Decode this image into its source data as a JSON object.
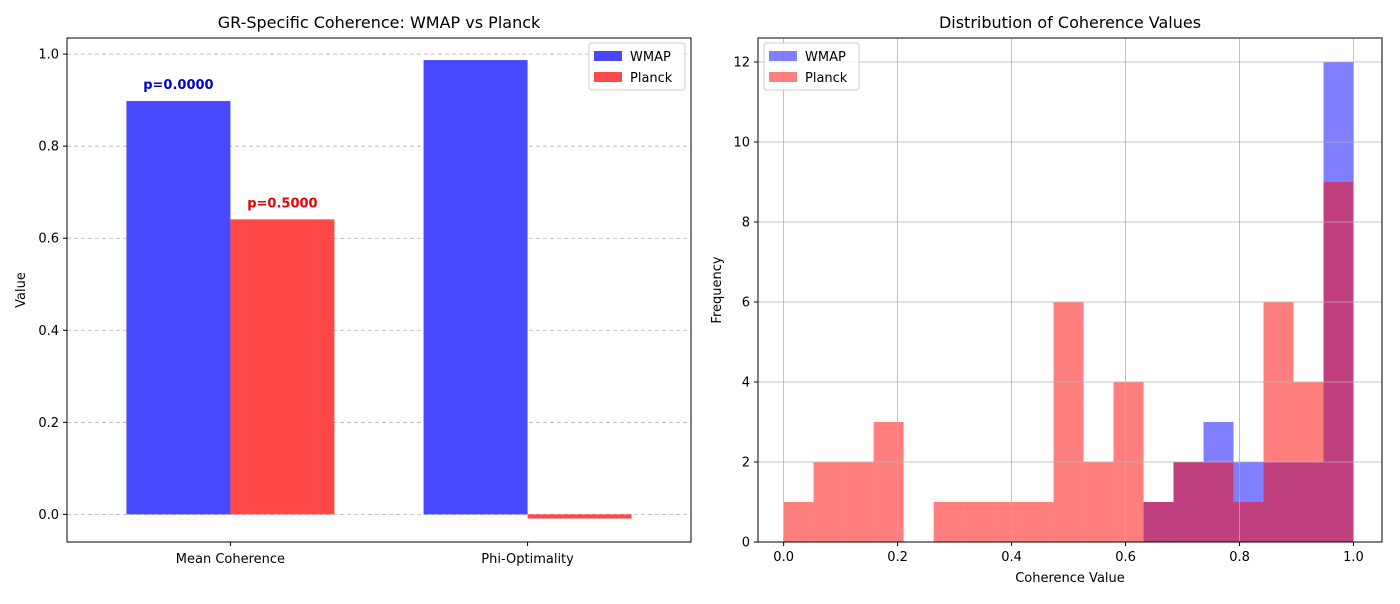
{
  "chart_data": [
    {
      "type": "bar",
      "title": "GR-Specific Coherence: WMAP vs Planck",
      "xlabel": "",
      "ylabel": "Value",
      "categories": [
        "Mean Coherence",
        "Phi-Optimality"
      ],
      "series": [
        {
          "name": "WMAP",
          "values": [
            0.898,
            0.987
          ],
          "color": "#4848ff"
        },
        {
          "name": "Planck",
          "values": [
            0.641,
            -0.009
          ],
          "color": "#ff4848"
        }
      ],
      "annotations": [
        {
          "text": "p=0.0000",
          "category": 0,
          "series": 0,
          "color": "#0000cc"
        },
        {
          "text": "p=0.5000",
          "category": 0,
          "series": 1,
          "color": "#ee0000"
        }
      ],
      "ylim": [
        -0.06,
        1.035
      ],
      "yticks": [
        0.0,
        0.2,
        0.4,
        0.6,
        0.8,
        1.0
      ],
      "ytick_labels": [
        "0.0",
        "0.2",
        "0.4",
        "0.6",
        "0.8",
        "1.0"
      ],
      "grid": "y-dashed",
      "legend_position": "top-right"
    },
    {
      "type": "histogram",
      "title": "Distribution of Coherence Values",
      "xlabel": "Coherence Value",
      "ylabel": "Frequency",
      "bin_edges": [
        0.0,
        0.0526,
        0.1053,
        0.1579,
        0.2105,
        0.2632,
        0.3158,
        0.3684,
        0.4211,
        0.4737,
        0.5263,
        0.5789,
        0.6316,
        0.6842,
        0.7368,
        0.7895,
        0.8421,
        0.8947,
        0.9474,
        1.0
      ],
      "series": [
        {
          "name": "WMAP",
          "counts": [
            0,
            0,
            0,
            0,
            0,
            0,
            0,
            0,
            0,
            0,
            0,
            0,
            1,
            2,
            3,
            2,
            2,
            2,
            12
          ],
          "color": "#0000ff",
          "alpha": 0.5
        },
        {
          "name": "Planck",
          "counts": [
            1,
            2,
            2,
            3,
            0,
            1,
            1,
            1,
            1,
            6,
            2,
            4,
            1,
            2,
            2,
            1,
            6,
            4,
            9
          ],
          "color": "#ff0000",
          "alpha": 0.5
        }
      ],
      "xlim": [
        -0.045,
        1.05
      ],
      "ylim": [
        0,
        12.6
      ],
      "xticks": [
        0.0,
        0.2,
        0.4,
        0.6,
        0.8,
        1.0
      ],
      "xtick_labels": [
        "0.0",
        "0.2",
        "0.4",
        "0.6",
        "0.8",
        "1.0"
      ],
      "yticks": [
        0,
        2,
        4,
        6,
        8,
        10,
        12
      ],
      "ytick_labels": [
        "0",
        "2",
        "4",
        "6",
        "8",
        "10",
        "12"
      ],
      "grid": "both-solid",
      "legend_position": "top-left"
    }
  ]
}
